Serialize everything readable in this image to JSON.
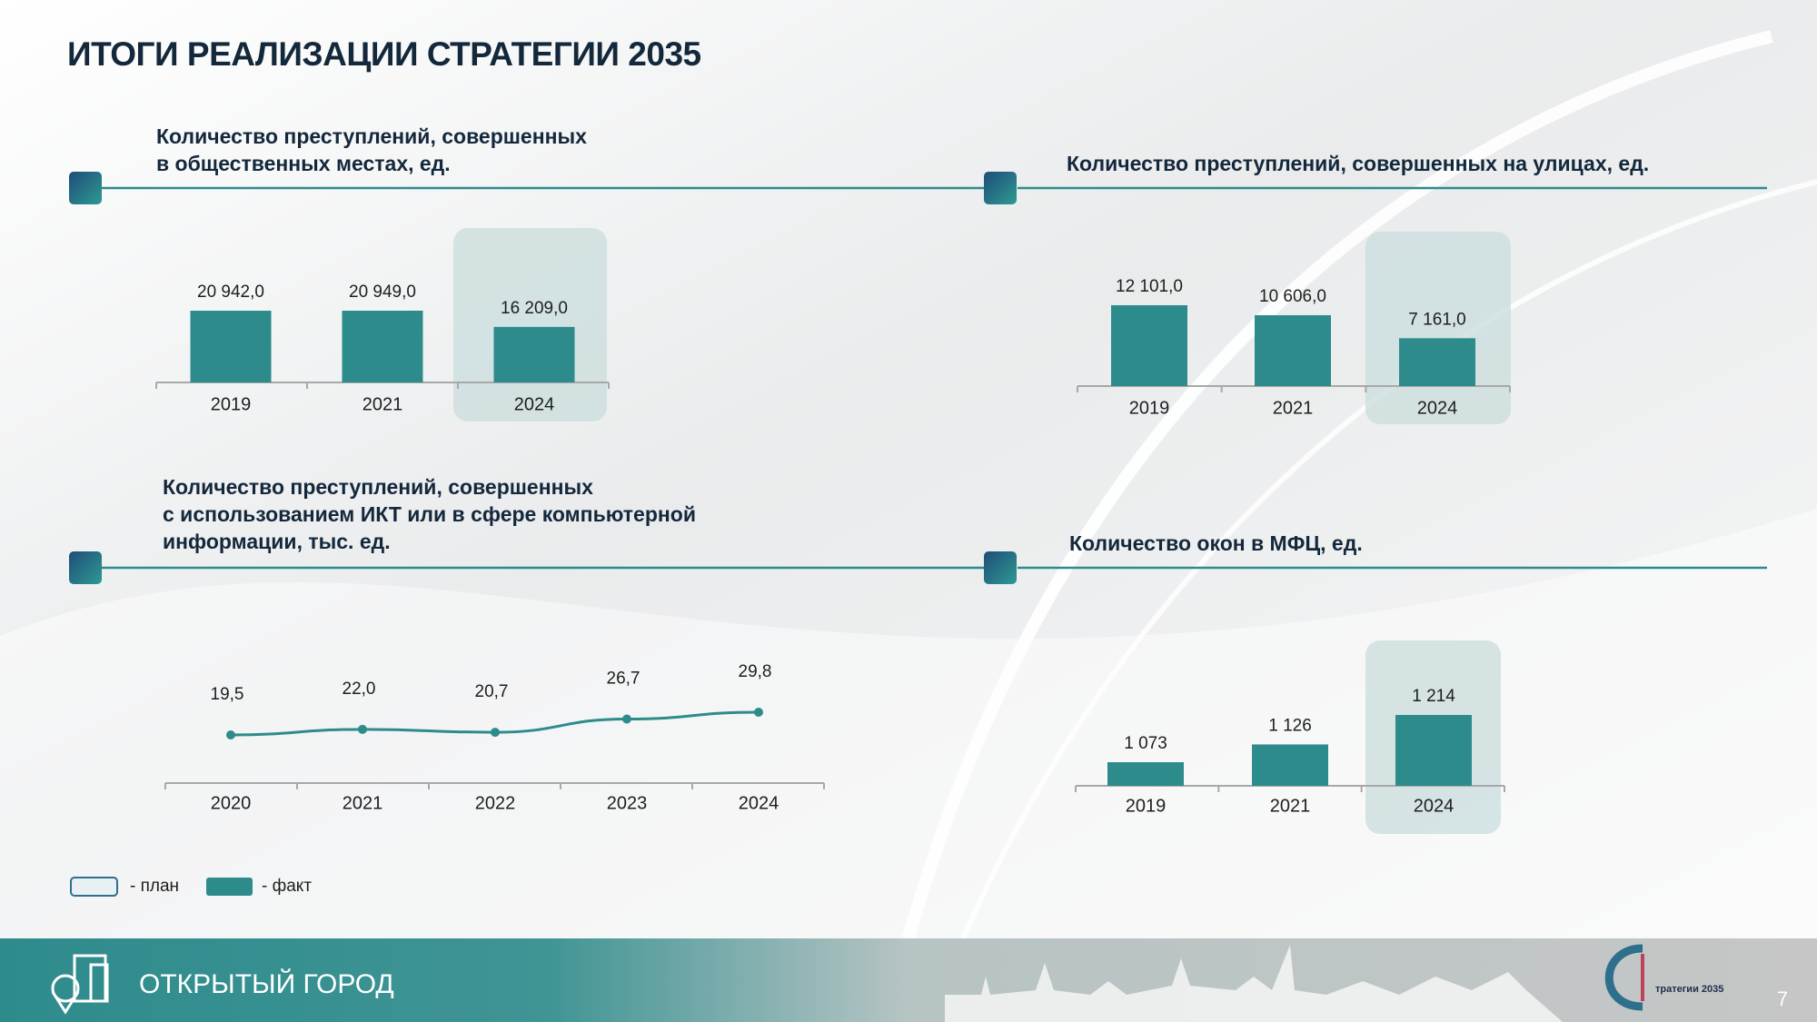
{
  "title": "ИТОГИ РЕАЛИЗАЦИИ СТРАТЕГИИ 2035",
  "chart_data": [
    {
      "type": "bar",
      "title": [
        "Количество преступлений, совершенных",
        "в общественных местах, ед."
      ],
      "categories": [
        "2019",
        "2021",
        "2024"
      ],
      "values": [
        20942,
        20949,
        16209
      ],
      "value_labels": [
        "20 942,0",
        "20 949,0",
        "16 209,0"
      ],
      "color": "#2e8b8c"
    },
    {
      "type": "bar",
      "title": [
        "Количество преступлений, совершенных на улицах, ед."
      ],
      "categories": [
        "2019",
        "2021",
        "2024"
      ],
      "values": [
        12101,
        10606,
        7161
      ],
      "value_labels": [
        "12 101,0",
        "10 606,0",
        "7 161,0"
      ],
      "color": "#2e8b8c"
    },
    {
      "type": "line",
      "title": [
        "Количество преступлений, совершенных",
        "с использованием ИКТ или в сфере компьютерной",
        "информации, тыс. ед."
      ],
      "categories": [
        "2020",
        "2021",
        "2022",
        "2023",
        "2024"
      ],
      "values": [
        19.5,
        22.0,
        20.7,
        26.7,
        29.8
      ],
      "value_labels": [
        "19,5",
        "22,0",
        "20,7",
        "26,7",
        "29,8"
      ],
      "color": "#2e8b8c"
    },
    {
      "type": "bar",
      "title": [
        "Количество окон в МФЦ, ед."
      ],
      "categories": [
        "2019",
        "2021",
        "2024"
      ],
      "values": [
        1073,
        1126,
        1214
      ],
      "value_labels": [
        "1 073",
        "1 126",
        "1 214"
      ],
      "color": "#2e8b8c"
    }
  ],
  "legend": [
    {
      "label": "- план",
      "color": "#e8f0f3"
    },
    {
      "label": "- факт",
      "color": "#2e8b8c"
    }
  ],
  "footer": {
    "section": "ОТКРЫТЫЙ ГОРОД",
    "logo": "тратегии 2035",
    "page": "7"
  }
}
